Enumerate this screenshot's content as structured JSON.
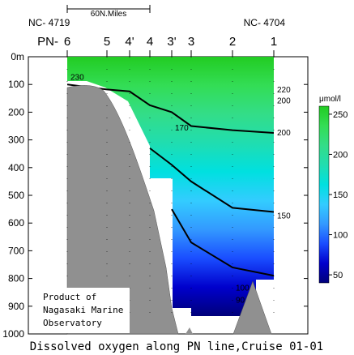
{
  "chart_data": {
    "type": "heatmap",
    "title": "Dissolved oxygen along PN line,Cruise 01-01",
    "distance_scale_label": "60N.Miles",
    "line_label": "PN-",
    "station_codes": {
      "left": "NC- 4719",
      "right": "NC- 4704"
    },
    "stations": [
      "6",
      "5",
      "4'",
      "4",
      "3'",
      "3",
      "2",
      "1"
    ],
    "yaxis": {
      "label_unit": "m",
      "ylim": [
        0,
        1000
      ],
      "ticks": [
        0,
        100,
        200,
        300,
        400,
        500,
        600,
        700,
        800,
        900,
        1000
      ],
      "ticks_labels": [
        "0m",
        "100",
        "200",
        "300",
        "400",
        "500",
        "600",
        "700",
        "800",
        "900",
        "1000"
      ]
    },
    "colorbar": {
      "unit": "μmol/l",
      "range": [
        40,
        260
      ],
      "ticks": [
        50,
        100,
        150,
        200,
        250
      ],
      "colors": [
        "#00007a",
        "#0000cc",
        "#1a4dff",
        "#3399ff",
        "#33ccff",
        "#00e0e0",
        "#20ddb0",
        "#33dd88",
        "#33dd55",
        "#22cc22"
      ]
    },
    "contour_labels": [
      {
        "text": "230",
        "station": "6",
        "depth": 75
      },
      {
        "text": "220",
        "station": "1",
        "depth": 120
      },
      {
        "text": "200",
        "station": "1",
        "depth": 160
      },
      {
        "text": "200",
        "station": "1",
        "depth": 275
      },
      {
        "text": "170",
        "station": "3'",
        "depth": 258
      },
      {
        "text": "150",
        "station": "1",
        "depth": 575
      },
      {
        "text": "100",
        "station": "2",
        "depth": 835
      },
      {
        "text": "90",
        "station": "2",
        "depth": 878
      }
    ],
    "contours": [
      {
        "value": 200,
        "bold": true,
        "points": [
          [
            0,
            100
          ],
          [
            1,
            118
          ],
          [
            2,
            125
          ],
          [
            3,
            175
          ],
          [
            4,
            200
          ],
          [
            5,
            250
          ],
          [
            6,
            265
          ],
          [
            7,
            275
          ]
        ]
      },
      {
        "value": 150,
        "bold": true,
        "points": [
          [
            3,
            330
          ],
          [
            4,
            390
          ],
          [
            5,
            450
          ],
          [
            6,
            545
          ],
          [
            7,
            560
          ]
        ]
      },
      {
        "value": 100,
        "bold": true,
        "points": [
          [
            4,
            550
          ],
          [
            5,
            670
          ],
          [
            6,
            760
          ],
          [
            7,
            790
          ]
        ]
      }
    ],
    "annotation": {
      "lines": [
        "Product of",
        "Nagasaki Marine",
        "Observatory"
      ]
    }
  }
}
